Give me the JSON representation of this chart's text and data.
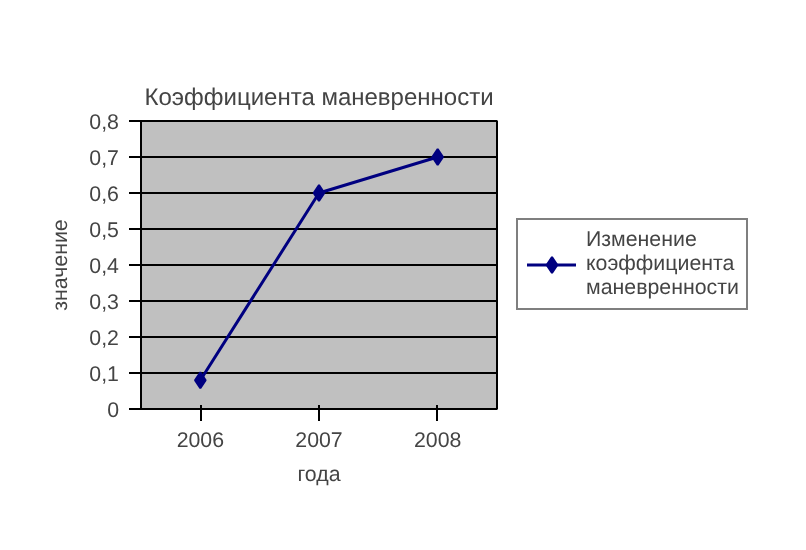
{
  "chart_data": {
    "type": "line",
    "title": "Коэффициента маневренности",
    "xlabel": "года",
    "ylabel": "значение",
    "categories": [
      "2006",
      "2007",
      "2008"
    ],
    "series": [
      {
        "name": "Изменение коэффициента маневренности",
        "color": "#000080",
        "values": [
          0.08,
          0.6,
          0.7
        ]
      }
    ],
    "ylim": [
      0,
      0.8
    ],
    "yticks": [
      0,
      {
        "value": 0.1,
        "label": "0,1"
      },
      {
        "value": 0.2,
        "label": "0,2"
      },
      {
        "value": 0.3,
        "label": "0,3"
      },
      {
        "value": 0.4,
        "label": "0,4"
      },
      {
        "value": 0.5,
        "label": "0,5"
      },
      {
        "value": 0.6,
        "label": "0,6"
      },
      {
        "value": 0.7,
        "label": "0,7"
      },
      {
        "value": 0.8,
        "label": "0,8"
      }
    ],
    "grid": "y",
    "legend": "right",
    "marker": "diamond",
    "line_style": "solid"
  }
}
